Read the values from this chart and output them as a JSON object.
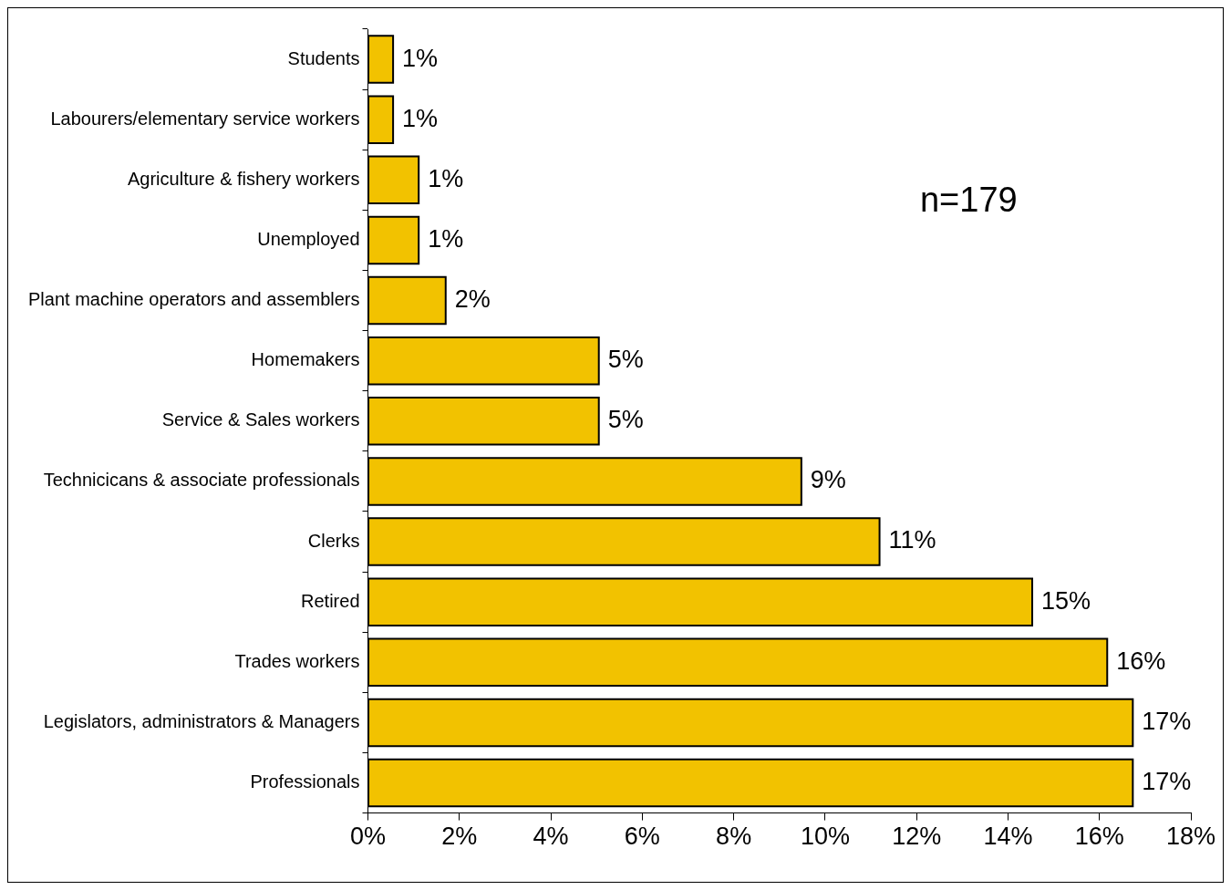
{
  "chart_data": {
    "type": "bar",
    "orientation": "horizontal",
    "categories": [
      "Students",
      "Labourers/elementary service workers",
      "Agriculture & fishery workers",
      "Unemployed",
      "Plant machine operators and assemblers",
      "Homemakers",
      "Service & Sales workers",
      "Technicicans & associate professionals",
      "Clerks",
      "Retired",
      "Trades workers",
      "Legislators, administrators & Managers",
      "Professionals"
    ],
    "values": [
      0.55,
      0.55,
      1.11,
      1.11,
      1.7,
      5.05,
      5.05,
      9.48,
      11.19,
      14.53,
      16.17,
      16.73,
      16.73
    ],
    "value_labels": [
      "1%",
      "1%",
      "1%",
      "1%",
      "2%",
      "5%",
      "5%",
      "9%",
      "11%",
      "15%",
      "16%",
      "17%",
      "17%"
    ],
    "color": "#f2c200",
    "xlim": [
      0,
      18
    ],
    "xticks": [
      {
        "value": 0,
        "label": "0%"
      },
      {
        "value": 2,
        "label": "2%"
      },
      {
        "value": 4,
        "label": "4%"
      },
      {
        "value": 6,
        "label": "6%"
      },
      {
        "value": 8,
        "label": "8%"
      },
      {
        "value": 10,
        "label": "10%"
      },
      {
        "value": 12,
        "label": "12%"
      },
      {
        "value": 14,
        "label": "14%"
      },
      {
        "value": 16,
        "label": "16%"
      },
      {
        "value": 18,
        "label": "18%"
      }
    ],
    "grid": false,
    "legend": false,
    "annotations": [
      "n=179"
    ]
  }
}
